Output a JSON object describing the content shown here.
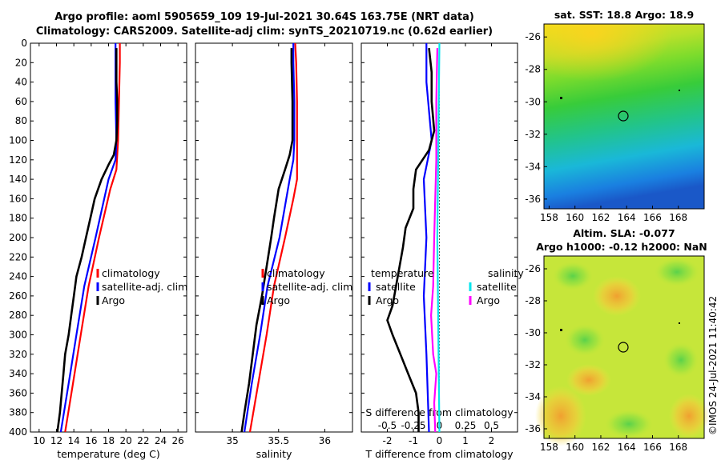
{
  "titles": {
    "line1": "Argo profile: aoml 5905659_109 19-Jul-2021 30.64S 163.75E (NRT data)",
    "line2": "Climatology: CARS2009. Satellite-adj clim: synTS_20210719.nc (0.62d earlier)"
  },
  "colors": {
    "climatology": "#ff0000",
    "satellite_adj": "#0000ff",
    "argo": "#000000",
    "satellite_salinity": "#00e5ee",
    "argo_salinity": "#ff00ff"
  },
  "maps": {
    "sst": {
      "title": "sat. SST: 18.8 Argo: 18.9",
      "xticks": [
        "158",
        "160",
        "162",
        "164",
        "166",
        "168"
      ],
      "yticks": [
        "-26",
        "-28",
        "-30",
        "-32",
        "-34",
        "-36"
      ]
    },
    "sla": {
      "title_line1": "Altim. SLA: -0.077",
      "title_line2": "Argo h1000: -0.12 h2000: NaN",
      "xticks": [
        "158",
        "160",
        "162",
        "164",
        "166",
        "168"
      ],
      "yticks": [
        "-26",
        "-28",
        "-30",
        "-32",
        "-34",
        "-36"
      ]
    }
  },
  "stamp": "©IMOS 24-Jul-2021 11:40:42",
  "chart_data": [
    {
      "type": "line",
      "name": "temperature",
      "xlabel": "temperature (deg C)",
      "ylabel": "",
      "xlim": [
        9,
        27
      ],
      "ylim": [
        400,
        0
      ],
      "xticks": [
        "10",
        "12",
        "14",
        "16",
        "18",
        "20",
        "22",
        "24",
        "26"
      ],
      "yticks": [
        "0",
        "20",
        "40",
        "60",
        "80",
        "100",
        "120",
        "140",
        "160",
        "180",
        "200",
        "220",
        "240",
        "260",
        "280",
        "300",
        "320",
        "340",
        "360",
        "380",
        "400"
      ],
      "legend": [
        "climatology",
        "satellite-adj. clim",
        "Argo"
      ],
      "series": [
        {
          "name": "climatology",
          "color": "#ff0000",
          "depth": [
            0,
            20,
            60,
            100,
            130,
            150,
            200,
            250,
            300,
            350,
            400
          ],
          "values": [
            19.3,
            19.3,
            19.2,
            19.1,
            18.9,
            18.2,
            16.9,
            15.7,
            14.8,
            13.9,
            13.0
          ]
        },
        {
          "name": "satellite-adj. clim",
          "color": "#0000ff",
          "depth": [
            0,
            20,
            60,
            100,
            120,
            140,
            200,
            250,
            300,
            350,
            400
          ],
          "values": [
            18.8,
            18.8,
            18.8,
            18.9,
            18.8,
            18.0,
            16.5,
            15.2,
            14.3,
            13.4,
            12.5
          ]
        },
        {
          "name": "Argo",
          "color": "#000000",
          "depth": [
            5,
            20,
            40,
            60,
            80,
            100,
            115,
            125,
            140,
            160,
            180,
            200,
            220,
            240,
            260,
            280,
            300,
            320,
            340,
            360,
            380,
            400
          ],
          "values": [
            18.9,
            18.9,
            18.9,
            19.0,
            19.0,
            18.9,
            18.6,
            18.0,
            17.2,
            16.4,
            15.9,
            15.4,
            14.9,
            14.3,
            14.0,
            13.7,
            13.4,
            13.0,
            12.8,
            12.6,
            12.4,
            12.1
          ]
        }
      ]
    },
    {
      "type": "line",
      "name": "salinity",
      "xlabel": "salinity",
      "xlim": [
        34.6,
        36.3
      ],
      "ylim": [
        400,
        0
      ],
      "xticks": [
        "35",
        "35.5",
        "36"
      ],
      "legend": [
        "climatology",
        "satellite-adj. clim",
        "Argo"
      ],
      "series": [
        {
          "name": "climatology",
          "color": "#ff0000",
          "depth": [
            0,
            20,
            60,
            100,
            140,
            160,
            200,
            250,
            300,
            350,
            400
          ],
          "values": [
            35.68,
            35.69,
            35.7,
            35.7,
            35.7,
            35.66,
            35.57,
            35.45,
            35.37,
            35.28,
            35.19
          ]
        },
        {
          "name": "satellite-adj. clim",
          "color": "#0000ff",
          "depth": [
            0,
            20,
            60,
            100,
            120,
            140,
            200,
            250,
            300,
            350,
            400
          ],
          "values": [
            35.66,
            35.66,
            35.67,
            35.67,
            35.66,
            35.62,
            35.51,
            35.38,
            35.3,
            35.21,
            35.13
          ]
        },
        {
          "name": "Argo",
          "color": "#000000",
          "depth": [
            5,
            20,
            60,
            100,
            115,
            130,
            150,
            180,
            200,
            230,
            260,
            290,
            320,
            350,
            380,
            400
          ],
          "values": [
            35.64,
            35.64,
            35.65,
            35.65,
            35.62,
            35.57,
            35.5,
            35.45,
            35.42,
            35.37,
            35.32,
            35.26,
            35.22,
            35.18,
            35.13,
            35.1
          ]
        }
      ]
    },
    {
      "type": "line",
      "name": "difference",
      "xlabel": "T difference from climatology",
      "x2label": "S difference from climatology",
      "xlim": [
        -3,
        3
      ],
      "x2lim": [
        -0.75,
        0.75
      ],
      "ylim": [
        400,
        0
      ],
      "xticks": [
        "-2",
        "-1",
        "0",
        "1",
        "2"
      ],
      "x2ticks": [
        "-0.5",
        "-0.25",
        "0",
        "0.25",
        "0.5"
      ],
      "legend_temperature_title": "temperature",
      "legend_salinity_title": "salinity",
      "legend_temperature": [
        "satellite",
        "Argo"
      ],
      "legend_salinity": [
        "satellite",
        "Argo"
      ],
      "series": [
        {
          "name": "T satellite",
          "color": "#0000ff",
          "axis": "T",
          "depth": [
            0,
            40,
            100,
            140,
            200,
            260,
            320,
            400
          ],
          "values": [
            -0.5,
            -0.5,
            -0.3,
            -0.6,
            -0.5,
            -0.6,
            -0.5,
            -0.4
          ]
        },
        {
          "name": "T Argo",
          "color": "#000000",
          "axis": "T",
          "depth": [
            5,
            30,
            60,
            90,
            110,
            130,
            150,
            170,
            190,
            210,
            240,
            270,
            285,
            300,
            320,
            340,
            360,
            380,
            400
          ],
          "values": [
            -0.4,
            -0.3,
            -0.3,
            -0.2,
            -0.4,
            -0.9,
            -1.0,
            -1.0,
            -1.3,
            -1.4,
            -1.6,
            -1.8,
            -2.0,
            -1.8,
            -1.5,
            -1.2,
            -0.9,
            -0.8,
            -0.8
          ]
        },
        {
          "name": "S satellite",
          "color": "#00e5ee",
          "axis": "S",
          "depth": [
            0,
            100,
            200,
            300,
            400
          ],
          "values": [
            0.0,
            -0.01,
            -0.02,
            -0.01,
            0.0
          ]
        },
        {
          "name": "S Argo",
          "color": "#ff00ff",
          "axis": "S",
          "depth": [
            5,
            60,
            120,
            160,
            200,
            250,
            280,
            300,
            320,
            340,
            370,
            400
          ],
          "values": [
            -0.02,
            -0.03,
            -0.03,
            -0.04,
            -0.05,
            -0.06,
            -0.08,
            -0.07,
            -0.06,
            -0.03,
            -0.05,
            -0.04
          ]
        }
      ]
    }
  ]
}
